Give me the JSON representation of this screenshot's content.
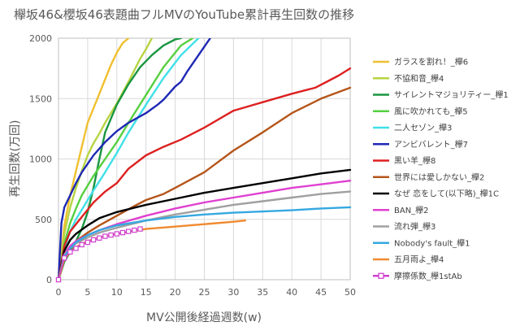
{
  "chart_data": {
    "type": "line",
    "title": "欅坂46&櫻坂46表題曲フルMVのYouTube累計再生回数の推移",
    "xlabel": "MV公開後経過週数(w)",
    "ylabel": "再生回数(万回)",
    "xlim": [
      0,
      50
    ],
    "ylim": [
      0,
      2000
    ],
    "xticks": [
      0,
      5,
      10,
      15,
      20,
      25,
      30,
      35,
      40,
      45,
      50
    ],
    "yticks": [
      0,
      500,
      1000,
      1500,
      2000
    ],
    "grid": "both",
    "legend_position": "right",
    "series": [
      {
        "name": "ガラスを割れ！_欅6",
        "color": "#f0c030",
        "x": [
          0,
          1,
          2,
          3,
          4,
          5,
          6,
          7,
          8,
          9,
          10,
          11,
          12
        ],
        "y": [
          0,
          450,
          700,
          900,
          1100,
          1300,
          1420,
          1540,
          1660,
          1780,
          1880,
          1960,
          2000
        ]
      },
      {
        "name": "不協和音_欅4",
        "color": "#b7d442",
        "x": [
          0,
          1,
          2,
          3,
          4,
          5,
          6,
          7,
          8,
          9,
          10,
          12,
          14,
          15,
          16
        ],
        "y": [
          0,
          380,
          600,
          760,
          900,
          1030,
          1130,
          1210,
          1300,
          1380,
          1460,
          1640,
          1830,
          1910,
          2000
        ]
      },
      {
        "name": "サイレントマジョリティー_欅1",
        "color": "#1a9641",
        "x": [
          0,
          1,
          2,
          3,
          4,
          5,
          6,
          7,
          8,
          10,
          12,
          14,
          16,
          18,
          20,
          21
        ],
        "y": [
          0,
          150,
          230,
          320,
          420,
          560,
          760,
          1000,
          1220,
          1450,
          1620,
          1760,
          1860,
          1940,
          1990,
          2000
        ]
      },
      {
        "name": "風に吹かれても_欅5",
        "color": "#55d040",
        "x": [
          0,
          1,
          2,
          3,
          4,
          5,
          6,
          8,
          10,
          12,
          15,
          18,
          21,
          23
        ],
        "y": [
          0,
          300,
          470,
          590,
          700,
          780,
          860,
          1000,
          1140,
          1300,
          1530,
          1760,
          1940,
          2000
        ]
      },
      {
        "name": "二人セゾン_欅3",
        "color": "#40e0e8",
        "x": [
          0,
          1,
          2,
          3,
          4,
          5,
          6,
          8,
          10,
          12,
          15,
          18,
          21,
          24
        ],
        "y": [
          0,
          260,
          400,
          500,
          580,
          660,
          740,
          890,
          1050,
          1220,
          1450,
          1670,
          1860,
          2000
        ]
      },
      {
        "name": "アンビバレント_欅7",
        "color": "#1e28b4",
        "x": [
          0,
          0.5,
          1,
          2,
          3,
          4,
          5,
          6,
          8,
          10,
          12,
          15,
          17,
          18,
          20,
          21,
          22,
          24,
          26
        ],
        "y": [
          0,
          470,
          600,
          700,
          800,
          890,
          960,
          1030,
          1140,
          1230,
          1300,
          1380,
          1450,
          1490,
          1600,
          1640,
          1720,
          1860,
          2000
        ]
      },
      {
        "name": "黒い羊_欅8",
        "color": "#dd2020",
        "x": [
          0,
          1,
          2,
          3,
          4,
          5,
          6,
          8,
          10,
          12,
          15,
          18,
          21,
          25,
          30,
          35,
          40,
          44,
          46,
          48,
          50
        ],
        "y": [
          0,
          280,
          400,
          460,
          520,
          580,
          640,
          730,
          800,
          920,
          1030,
          1100,
          1160,
          1260,
          1400,
          1470,
          1540,
          1590,
          1640,
          1690,
          1750
        ]
      },
      {
        "name": "世界には愛しかない_欅2",
        "color": "#b5551a",
        "x": [
          0,
          1,
          2,
          3,
          5,
          7,
          10,
          13,
          15,
          18,
          20,
          25,
          30,
          35,
          40,
          45,
          50
        ],
        "y": [
          0,
          180,
          260,
          320,
          390,
          450,
          530,
          610,
          660,
          710,
          760,
          890,
          1070,
          1220,
          1380,
          1500,
          1590
        ]
      },
      {
        "name": "なぜ 恋をして(以下略)_欅1C",
        "color": "#000000",
        "x": [
          0,
          1,
          2,
          3,
          5,
          7,
          10,
          15,
          20,
          25,
          30,
          35,
          40,
          45,
          50
        ],
        "y": [
          0,
          240,
          330,
          380,
          450,
          510,
          560,
          620,
          670,
          720,
          760,
          800,
          840,
          880,
          910
        ]
      },
      {
        "name": "BAN_欅2",
        "color": "#e040d0",
        "x": [
          0,
          1,
          2,
          3,
          5,
          7,
          10,
          15,
          20,
          25,
          30,
          35,
          40,
          45,
          50
        ],
        "y": [
          0,
          210,
          280,
          320,
          370,
          410,
          460,
          530,
          590,
          640,
          680,
          720,
          760,
          790,
          820
        ]
      },
      {
        "name": "流れ弾_欅3",
        "color": "#a0a0a0",
        "x": [
          0,
          1,
          2,
          3,
          5,
          7,
          10,
          15,
          20,
          25,
          30,
          35,
          40,
          45,
          50
        ],
        "y": [
          0,
          200,
          260,
          300,
          350,
          390,
          430,
          490,
          540,
          580,
          620,
          650,
          680,
          710,
          730
        ]
      },
      {
        "name": "Nobody's fault_欅1",
        "color": "#35a8e0",
        "x": [
          0,
          1,
          2,
          3,
          5,
          7,
          10,
          15,
          20,
          25,
          30,
          35,
          40,
          45,
          50
        ],
        "y": [
          0,
          190,
          260,
          310,
          370,
          410,
          450,
          490,
          520,
          540,
          555,
          565,
          575,
          590,
          600
        ]
      },
      {
        "name": "五月雨よ_欅4",
        "color": "#f08a30",
        "x": [
          0,
          1,
          2,
          3,
          5,
          7,
          10,
          15,
          20,
          25,
          30,
          32
        ],
        "y": [
          0,
          170,
          230,
          270,
          320,
          350,
          380,
          420,
          440,
          460,
          480,
          490
        ]
      },
      {
        "name": "摩擦係数_欅1stAb",
        "color": "#d040d0",
        "marker": "square",
        "x": [
          0,
          1,
          2,
          3,
          4,
          5,
          6,
          7,
          8,
          9,
          10,
          11,
          12,
          13,
          14
        ],
        "y": [
          0,
          180,
          230,
          260,
          290,
          310,
          330,
          345,
          360,
          370,
          380,
          390,
          400,
          410,
          420
        ]
      }
    ]
  }
}
